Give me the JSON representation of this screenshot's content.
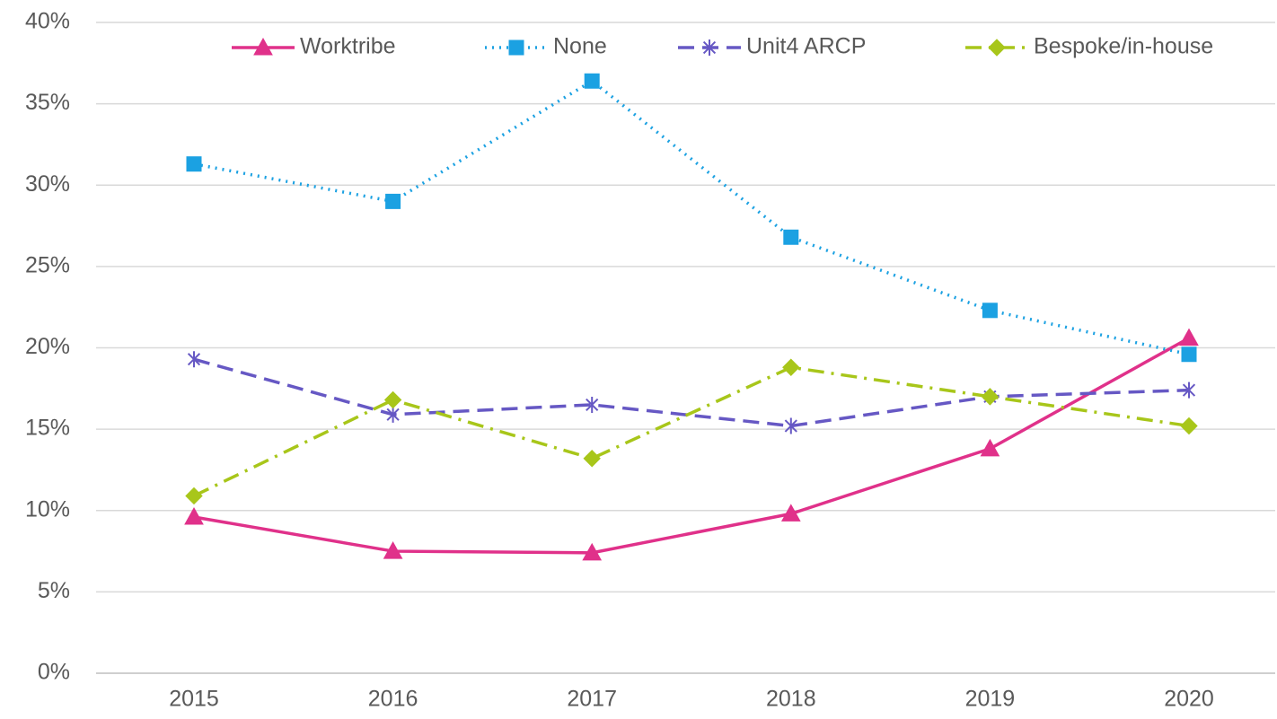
{
  "chart_data": {
    "type": "line",
    "categories": [
      "2015",
      "2016",
      "2017",
      "2018",
      "2019",
      "2020"
    ],
    "series": [
      {
        "name": "Worktribe",
        "color": "#e0318a",
        "marker": "triangle",
        "dash": "solid",
        "values": [
          9.6,
          7.5,
          7.4,
          9.8,
          13.8,
          20.6
        ]
      },
      {
        "name": "None",
        "color": "#1ba1e2",
        "marker": "square",
        "dash": "dotted",
        "values": [
          31.3,
          29.0,
          36.4,
          26.8,
          22.3,
          19.6
        ]
      },
      {
        "name": "Unit4 ARCP",
        "color": "#6658c4",
        "marker": "star",
        "dash": "dashed",
        "values": [
          19.3,
          15.9,
          16.5,
          15.2,
          17.0,
          17.4
        ]
      },
      {
        "name": "Bespoke/in-house",
        "color": "#a8c61a",
        "marker": "diamond",
        "dash": "dashdot",
        "values": [
          10.9,
          16.8,
          13.2,
          18.8,
          17.0,
          15.2
        ]
      }
    ],
    "ylim": [
      0,
      40
    ],
    "yticks": [
      {
        "value": 0,
        "label": "0%"
      },
      {
        "value": 5,
        "label": "5%"
      },
      {
        "value": 10,
        "label": "10%"
      },
      {
        "value": 15,
        "label": "15%"
      },
      {
        "value": 20,
        "label": "20%"
      },
      {
        "value": 25,
        "label": "25%"
      },
      {
        "value": 30,
        "label": "30%"
      },
      {
        "value": 35,
        "label": "35%"
      },
      {
        "value": 40,
        "label": "40%"
      }
    ],
    "grid": true,
    "legend": "top"
  }
}
